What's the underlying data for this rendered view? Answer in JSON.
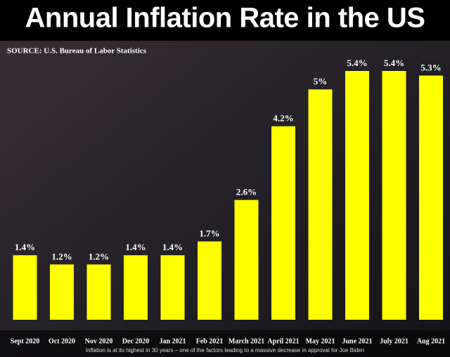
{
  "chart_data": {
    "type": "bar",
    "title": "Annual Inflation Rate in the US",
    "subtitle": "SOURCE: U.S. Bureau of Labor Statistics",
    "caption": "Inflation is at its highest in 30 years – one of the factors leading to a massive decrease in approval for Joe Biden",
    "categories": [
      "Sept 2020",
      "Oct 2020",
      "Nov 2020",
      "Dec 2020",
      "Jan 2021",
      "Feb 2021",
      "March 2021",
      "April 2021",
      "May 2021",
      "June 2021",
      "July 2021",
      "Aug 2021"
    ],
    "values": [
      1.4,
      1.2,
      1.2,
      1.4,
      1.4,
      1.7,
      2.6,
      4.2,
      5,
      5.4,
      5.4,
      5.3
    ],
    "value_labels": [
      "1.4%",
      "1.2%",
      "1.2%",
      "1.4%",
      "1.4%",
      "1.7%",
      "2.6%",
      "4.2%",
      "5%",
      "5.4%",
      "5.4%",
      "5.3%"
    ],
    "color": "#ffff00"
  }
}
